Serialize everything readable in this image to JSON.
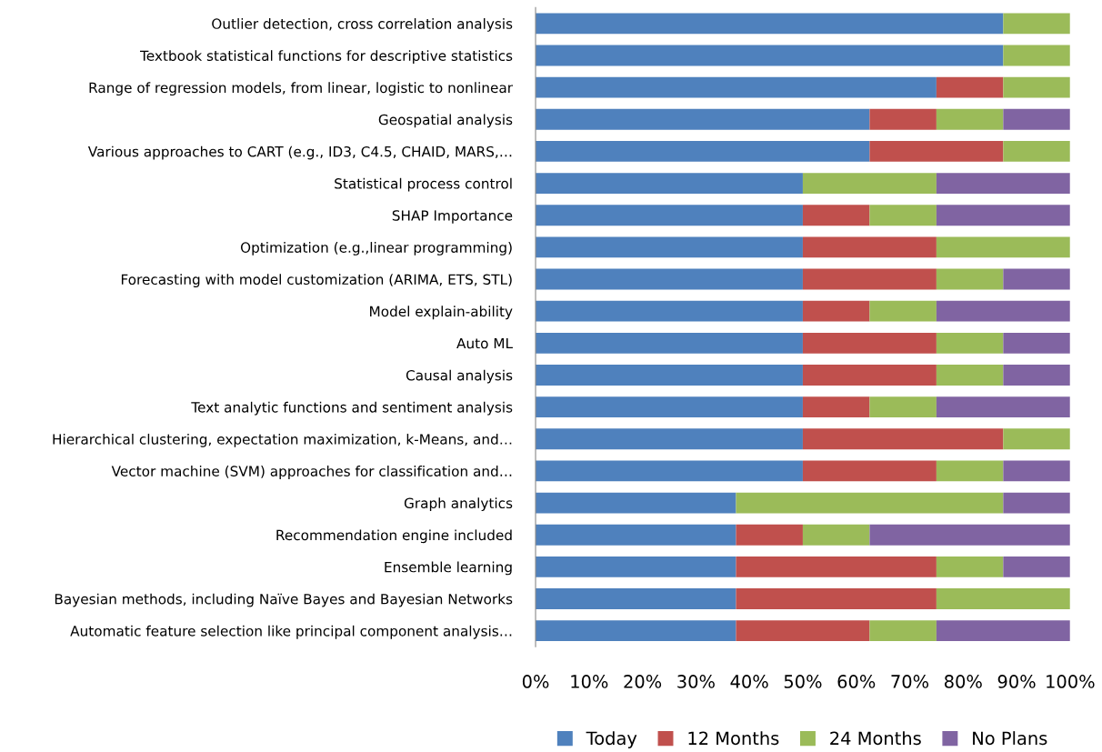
{
  "chart_data": {
    "type": "bar",
    "orientation": "horizontal",
    "stacked": true,
    "categories": [
      "Outlier detection, cross correlation analysis",
      "Textbook statistical functions for descriptive statistics",
      "Range of regression models, from linear, logistic to nonlinear",
      "Geospatial analysis",
      "Various approaches to CART (e.g., ID3, C4.5, CHAID, MARS,…",
      "Statistical process control",
      "SHAP Importance",
      "Optimization (e.g.,linear programming)",
      "Forecasting with model customization (ARIMA, ETS, STL)",
      "Model explain-ability",
      "Auto ML",
      "Causal analysis",
      "Text analytic functions and sentiment analysis",
      "Hierarchical clustering, expectation maximization, k-Means, and…",
      "Vector machine (SVM) approaches for classification and…",
      "Graph analytics",
      "Recommendation engine included",
      "Ensemble learning",
      "Bayesian methods, including Naïve Bayes and Bayesian Networks",
      "Automatic feature selection like principal component analysis…"
    ],
    "series": [
      {
        "name": "Today",
        "color": "#4f81bd",
        "values": [
          87.5,
          87.5,
          75,
          62.5,
          62.5,
          50,
          50,
          50,
          50,
          50,
          50,
          50,
          50,
          50,
          50,
          37.5,
          37.5,
          37.5,
          37.5,
          37.5
        ]
      },
      {
        "name": "12 Months",
        "color": "#c0504d",
        "values": [
          0,
          0,
          12.5,
          12.5,
          25,
          0,
          12.5,
          25,
          25,
          12.5,
          25,
          25,
          12.5,
          37.5,
          25,
          0,
          12.5,
          37.5,
          37.5,
          25
        ]
      },
      {
        "name": "24 Months",
        "color": "#9bbb59",
        "values": [
          12.5,
          12.5,
          12.5,
          12.5,
          12.5,
          25,
          12.5,
          25,
          12.5,
          12.5,
          12.5,
          12.5,
          12.5,
          12.5,
          12.5,
          50,
          12.5,
          12.5,
          25,
          12.5
        ]
      },
      {
        "name": "No Plans",
        "color": "#8064a2",
        "values": [
          0,
          0,
          0,
          12.5,
          0,
          25,
          25,
          0,
          12.5,
          25,
          12.5,
          12.5,
          25,
          0,
          12.5,
          12.5,
          37.5,
          12.5,
          0,
          25
        ]
      }
    ],
    "xlim": [
      0,
      100
    ],
    "xticks": [
      {
        "value": 0,
        "label": "0%"
      },
      {
        "value": 10,
        "label": "10%"
      },
      {
        "value": 20,
        "label": "20%"
      },
      {
        "value": 30,
        "label": "30%"
      },
      {
        "value": 40,
        "label": "40%"
      },
      {
        "value": 50,
        "label": "50%"
      },
      {
        "value": 60,
        "label": "60%"
      },
      {
        "value": 70,
        "label": "70%"
      },
      {
        "value": 80,
        "label": "80%"
      },
      {
        "value": 90,
        "label": "90%"
      },
      {
        "value": 100,
        "label": "100%"
      }
    ],
    "grid": false,
    "legend": "bottom"
  }
}
